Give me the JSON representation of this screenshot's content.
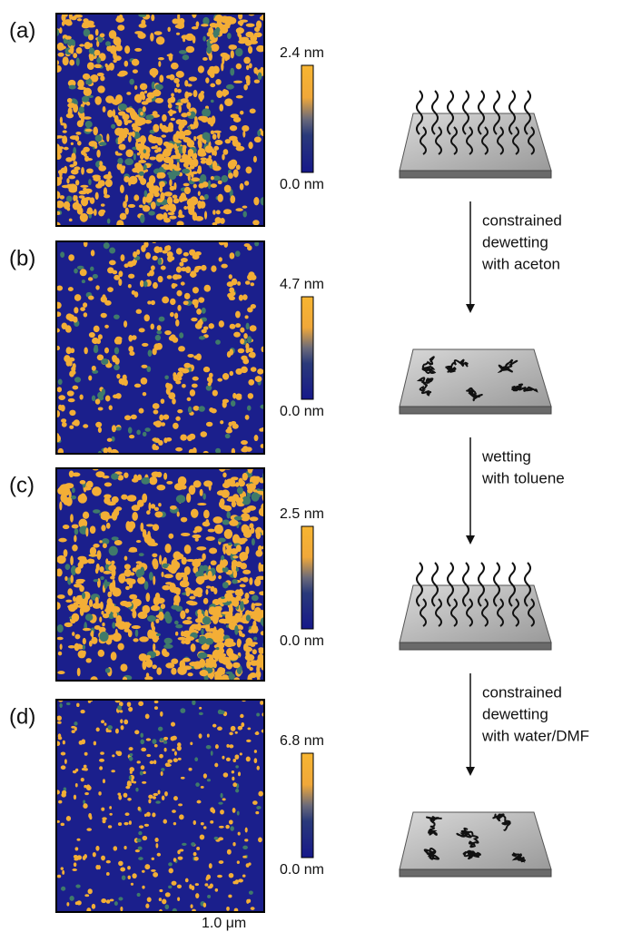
{
  "panels": [
    {
      "label": "(a)",
      "scale_max": "2.4 nm",
      "scale_min": "0.0 nm"
    },
    {
      "label": "(b)",
      "scale_max": "4.7 nm",
      "scale_min": "0.0 nm"
    },
    {
      "label": "(c)",
      "scale_max": "2.5 nm",
      "scale_min": "0.0 nm"
    },
    {
      "label": "(d)",
      "scale_max": "6.8 nm",
      "scale_min": "0.0 nm"
    }
  ],
  "scale_bar": "1.0 μm",
  "steps": [
    {
      "lines": [
        "constrained",
        "dewetting",
        "with aceton"
      ]
    },
    {
      "lines": [
        "wetting",
        "with toluene"
      ]
    },
    {
      "lines": [
        "constrained",
        "dewetting",
        "with water/DMF"
      ]
    }
  ]
}
